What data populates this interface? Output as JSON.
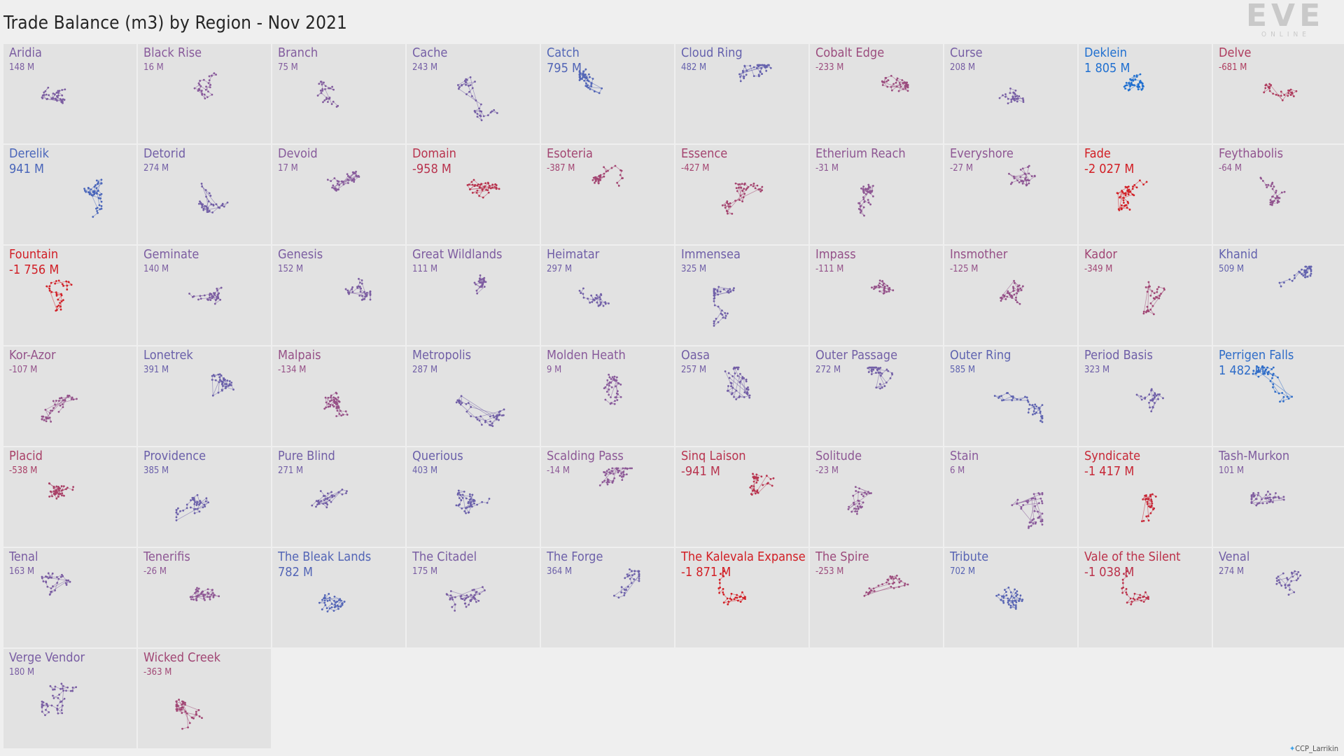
{
  "title": "Trade Balance (m3) by Region - Nov 2021",
  "logo": {
    "text": "EVE",
    "subtext": "ONLINE"
  },
  "credit": "CCP_Larrikin",
  "legend_colors": {
    "positive": "#1f6fd0",
    "neutral": "#8a5a9a",
    "negative": "#d21e24"
  },
  "chart_data": {
    "type": "small-multiples",
    "unit": "M m3",
    "regions": [
      {
        "name": "Aridia",
        "value": 148
      },
      {
        "name": "Black Rise",
        "value": 16
      },
      {
        "name": "Branch",
        "value": 75
      },
      {
        "name": "Cache",
        "value": 243
      },
      {
        "name": "Catch",
        "value": 795
      },
      {
        "name": "Cloud Ring",
        "value": 482
      },
      {
        "name": "Cobalt Edge",
        "value": -233
      },
      {
        "name": "Curse",
        "value": 208
      },
      {
        "name": "Deklein",
        "value": 1805
      },
      {
        "name": "Delve",
        "value": -681
      },
      {
        "name": "Derelik",
        "value": 941
      },
      {
        "name": "Detorid",
        "value": 274
      },
      {
        "name": "Devoid",
        "value": 17
      },
      {
        "name": "Domain",
        "value": -958
      },
      {
        "name": "Esoteria",
        "value": -387
      },
      {
        "name": "Essence",
        "value": -427
      },
      {
        "name": "Etherium Reach",
        "value": -31
      },
      {
        "name": "Everyshore",
        "value": -27
      },
      {
        "name": "Fade",
        "value": -2027
      },
      {
        "name": "Feythabolis",
        "value": -64
      },
      {
        "name": "Fountain",
        "value": -1756
      },
      {
        "name": "Geminate",
        "value": 140
      },
      {
        "name": "Genesis",
        "value": 152
      },
      {
        "name": "Great Wildlands",
        "value": 111
      },
      {
        "name": "Heimatar",
        "value": 297
      },
      {
        "name": "Immensea",
        "value": 325
      },
      {
        "name": "Impass",
        "value": -111
      },
      {
        "name": "Insmother",
        "value": -125
      },
      {
        "name": "Kador",
        "value": -349
      },
      {
        "name": "Khanid",
        "value": 509
      },
      {
        "name": "Kor-Azor",
        "value": -107
      },
      {
        "name": "Lonetrek",
        "value": 391
      },
      {
        "name": "Malpais",
        "value": -134
      },
      {
        "name": "Metropolis",
        "value": 287
      },
      {
        "name": "Molden Heath",
        "value": 9
      },
      {
        "name": "Oasa",
        "value": 257
      },
      {
        "name": "Outer Passage",
        "value": 272
      },
      {
        "name": "Outer Ring",
        "value": 585
      },
      {
        "name": "Period Basis",
        "value": 323
      },
      {
        "name": "Perrigen Falls",
        "value": 1482
      },
      {
        "name": "Placid",
        "value": -538
      },
      {
        "name": "Providence",
        "value": 385
      },
      {
        "name": "Pure Blind",
        "value": 271
      },
      {
        "name": "Querious",
        "value": 403
      },
      {
        "name": "Scalding Pass",
        "value": -14
      },
      {
        "name": "Sinq Laison",
        "value": -941
      },
      {
        "name": "Solitude",
        "value": -23
      },
      {
        "name": "Stain",
        "value": 6
      },
      {
        "name": "Syndicate",
        "value": -1417
      },
      {
        "name": "Tash-Murkon",
        "value": 101
      },
      {
        "name": "Tenal",
        "value": 163
      },
      {
        "name": "Tenerifis",
        "value": -26
      },
      {
        "name": "The Bleak Lands",
        "value": 782
      },
      {
        "name": "The Citadel",
        "value": 175
      },
      {
        "name": "The Forge",
        "value": 364
      },
      {
        "name": "The Kalevala Expanse",
        "value": -1871
      },
      {
        "name": "The Spire",
        "value": -253
      },
      {
        "name": "Tribute",
        "value": 702
      },
      {
        "name": "Vale of the Silent",
        "value": -1038
      },
      {
        "name": "Venal",
        "value": 274
      },
      {
        "name": "Verge Vendor",
        "value": 180
      },
      {
        "name": "Wicked Creek",
        "value": -363
      }
    ]
  }
}
